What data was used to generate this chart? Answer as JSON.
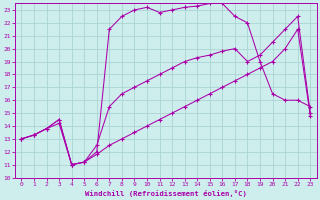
{
  "xlabel": "Windchill (Refroidissement éolien,°C)",
  "bg_color": "#ceeeed",
  "grid_color": "#aad4d3",
  "line_color": "#aa00aa",
  "xlim": [
    -0.5,
    23.5
  ],
  "ylim": [
    10,
    23.5
  ],
  "xticks": [
    0,
    1,
    2,
    3,
    4,
    5,
    6,
    7,
    8,
    9,
    10,
    11,
    12,
    13,
    14,
    15,
    16,
    17,
    18,
    19,
    20,
    21,
    22,
    23
  ],
  "yticks": [
    10,
    11,
    12,
    13,
    14,
    15,
    16,
    17,
    18,
    19,
    20,
    21,
    22,
    23
  ],
  "series": [
    {
      "x": [
        0,
        1,
        2,
        3,
        4,
        5,
        6,
        7,
        8,
        9,
        10,
        11,
        12,
        13,
        14,
        15,
        16,
        17,
        18,
        19,
        20,
        21,
        22,
        23
      ],
      "y": [
        13,
        13.3,
        13.8,
        14.5,
        11.0,
        11.2,
        12.0,
        21.5,
        22.5,
        23.0,
        23.2,
        22.8,
        23.0,
        23.2,
        23.3,
        23.5,
        23.5,
        22.5,
        22.0,
        19.0,
        16.5,
        16.0,
        16.0,
        15.5
      ]
    },
    {
      "x": [
        0,
        1,
        2,
        3,
        4,
        5,
        6,
        7,
        8,
        9,
        10,
        11,
        12,
        13,
        14,
        15,
        16,
        17,
        18,
        19,
        20,
        21,
        22,
        23
      ],
      "y": [
        13,
        13.3,
        13.8,
        14.5,
        11.0,
        11.2,
        12.5,
        15.5,
        16.5,
        17.0,
        17.5,
        18.0,
        18.5,
        19.0,
        19.3,
        19.5,
        19.8,
        20.0,
        19.0,
        19.5,
        20.5,
        21.5,
        22.5,
        15.0
      ]
    },
    {
      "x": [
        0,
        1,
        2,
        3,
        4,
        5,
        6,
        7,
        8,
        9,
        10,
        11,
        12,
        13,
        14,
        15,
        16,
        17,
        18,
        19,
        20,
        21,
        22,
        23
      ],
      "y": [
        13,
        13.3,
        13.8,
        14.2,
        11.0,
        11.2,
        11.8,
        12.5,
        13.0,
        13.5,
        14.0,
        14.5,
        15.0,
        15.5,
        16.0,
        16.5,
        17.0,
        17.5,
        18.0,
        18.5,
        19.0,
        20.0,
        21.5,
        14.8
      ]
    }
  ]
}
